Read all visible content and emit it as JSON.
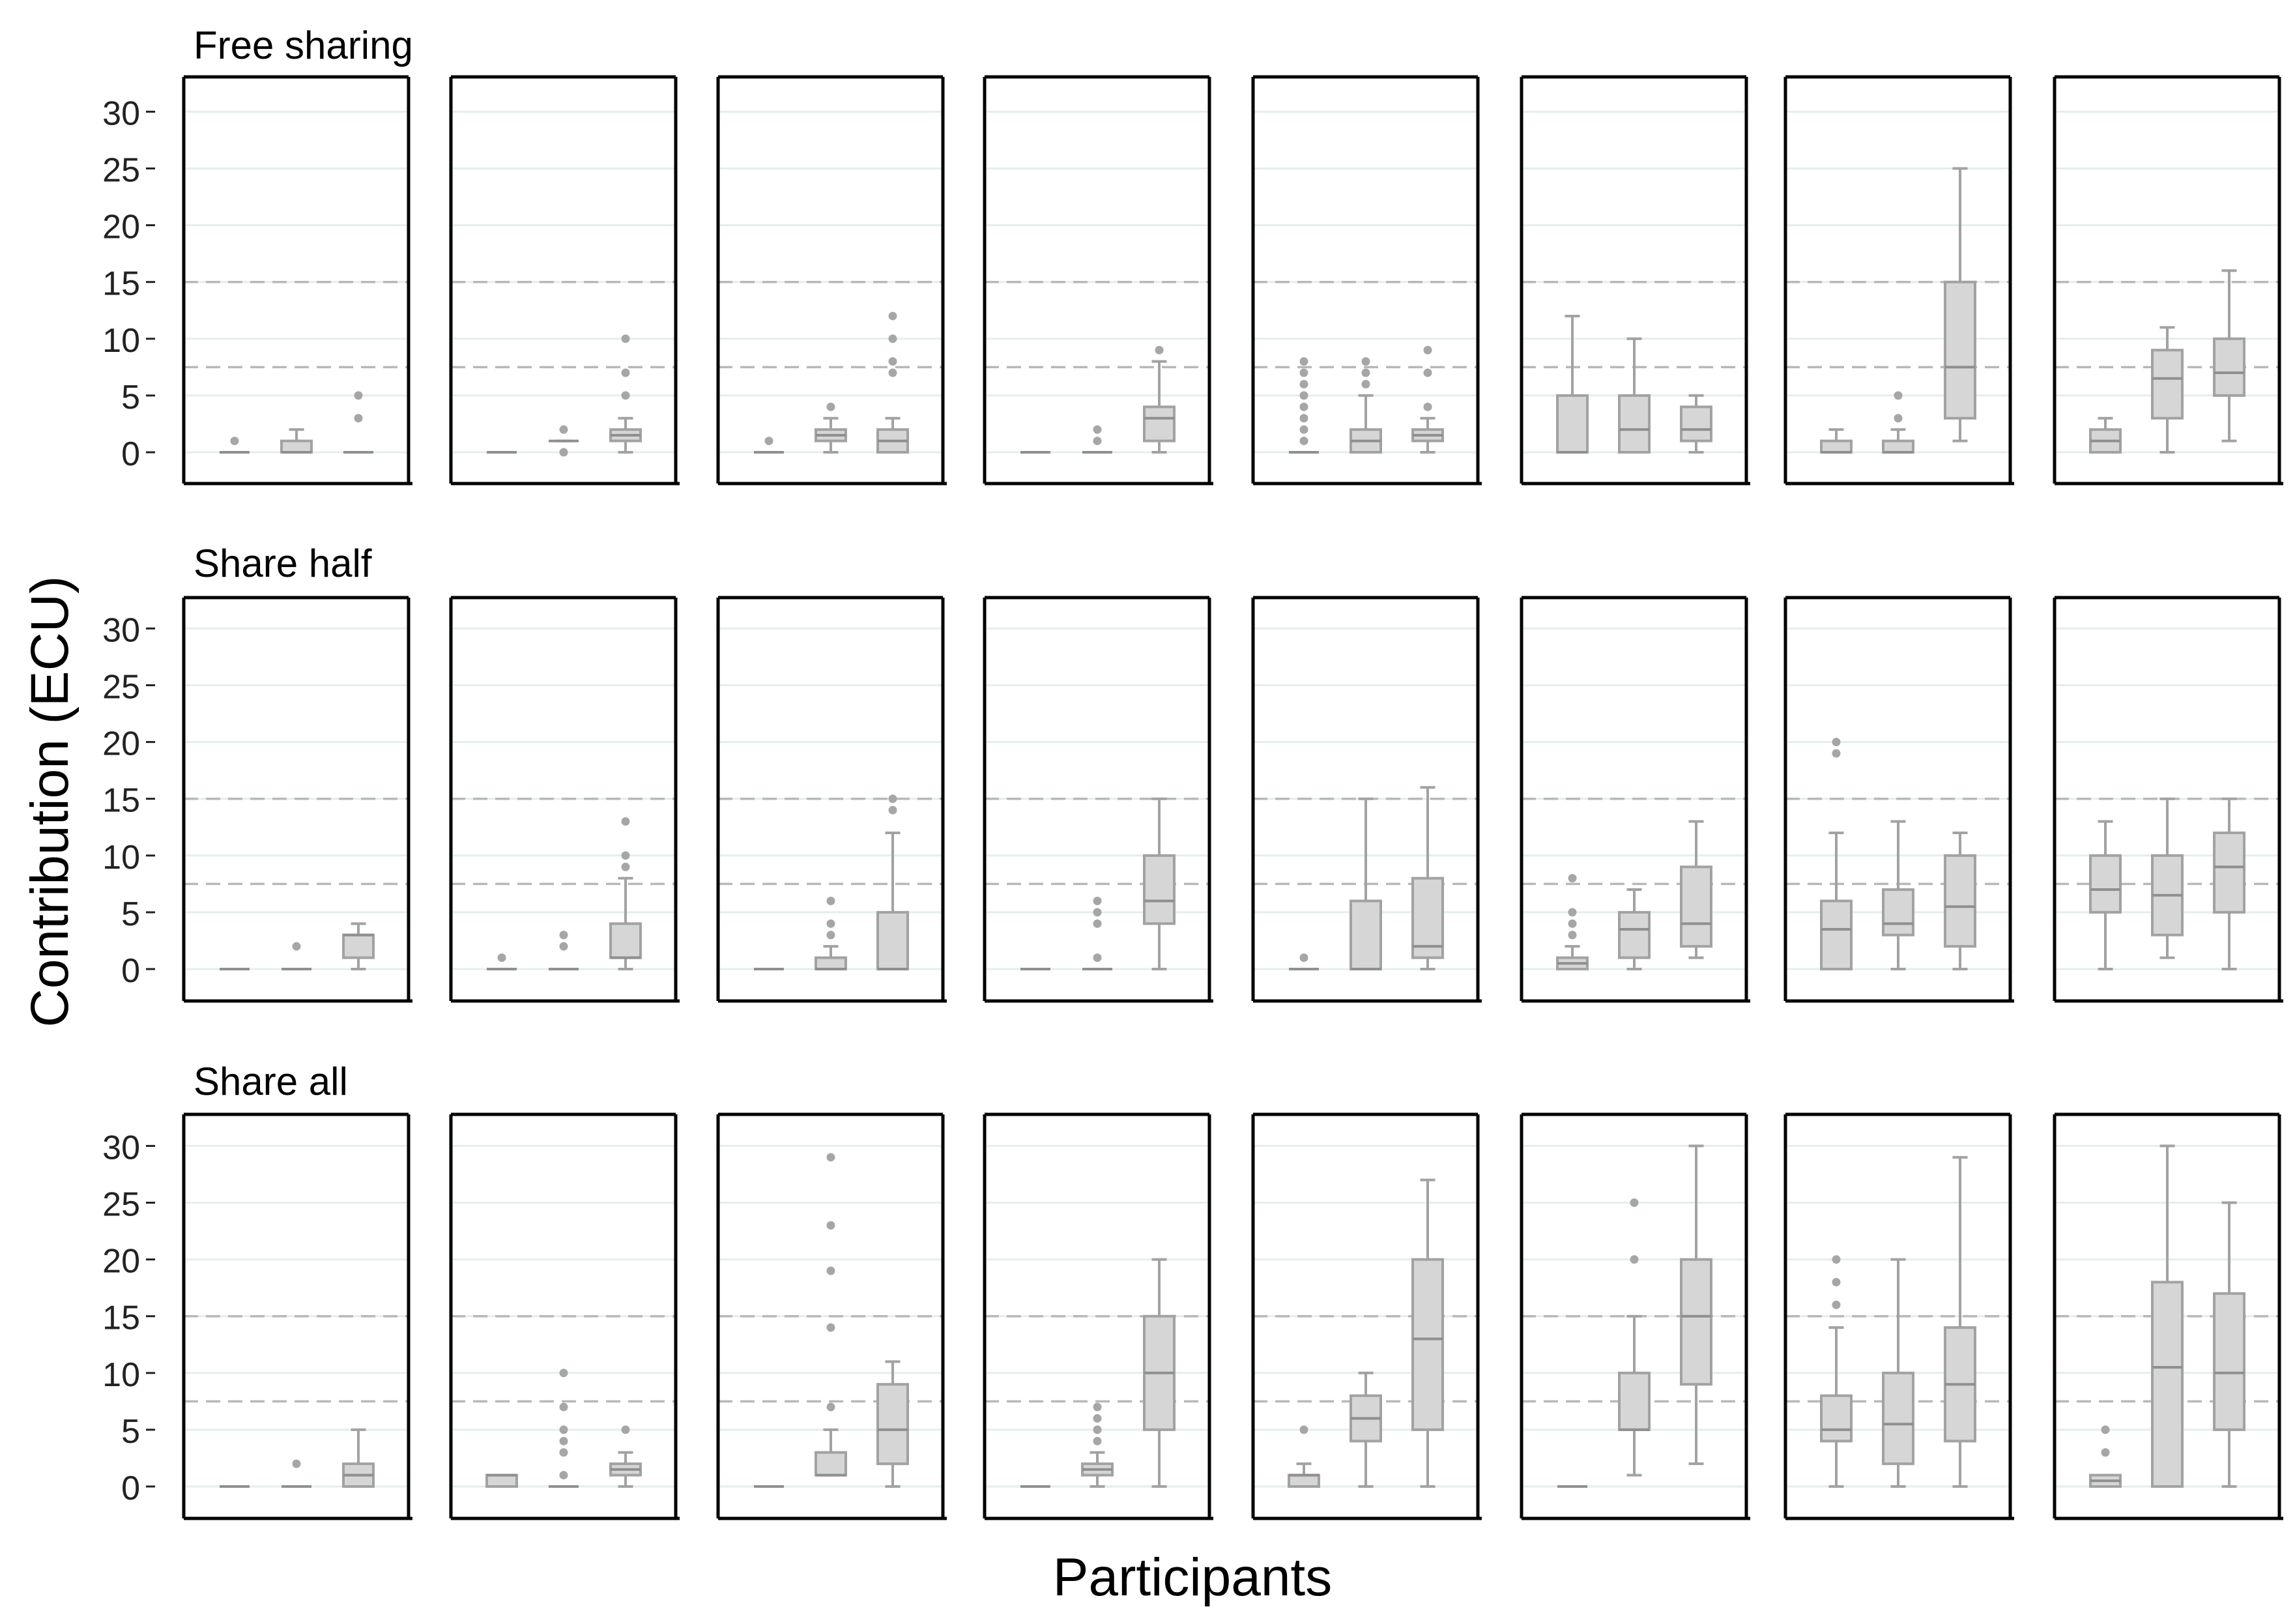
{
  "chart_data": {
    "type": "boxplot",
    "xlabel": "Participants",
    "ylabel": "Contribution (ECU)",
    "y_ticks": [
      0,
      5,
      10,
      15,
      20,
      25,
      30
    ],
    "ylim": [
      -3,
      32.5
    ],
    "reference_lines": [
      7.5,
      15
    ],
    "panels_per_row": 8,
    "boxes_per_panel": 3,
    "rows": [
      {
        "title": "Free sharing",
        "panels": [
          [
            {
              "q1": 0,
              "med": 0,
              "q3": 0,
              "lo": 0,
              "hi": 0,
              "out": [
                1
              ]
            },
            {
              "q1": 0,
              "med": 0,
              "q3": 1,
              "lo": 0,
              "hi": 2,
              "out": []
            },
            {
              "q1": 0,
              "med": 0,
              "q3": 0,
              "lo": 0,
              "hi": 0,
              "out": [
                3,
                5
              ]
            }
          ],
          [
            {
              "q1": 0,
              "med": 0,
              "q3": 0,
              "lo": 0,
              "hi": 0,
              "out": []
            },
            {
              "q1": 1,
              "med": 1,
              "q3": 1,
              "lo": 1,
              "hi": 1,
              "out": [
                0,
                2
              ]
            },
            {
              "q1": 1,
              "med": 1.5,
              "q3": 2,
              "lo": 0,
              "hi": 3,
              "out": [
                5,
                7,
                10
              ]
            }
          ],
          [
            {
              "q1": 0,
              "med": 0,
              "q3": 0,
              "lo": 0,
              "hi": 0,
              "out": [
                1
              ]
            },
            {
              "q1": 1,
              "med": 1.5,
              "q3": 2,
              "lo": 0,
              "hi": 3,
              "out": [
                4
              ]
            },
            {
              "q1": 0,
              "med": 1,
              "q3": 2,
              "lo": 0,
              "hi": 3,
              "out": [
                7,
                8,
                10,
                12
              ]
            }
          ],
          [
            {
              "q1": 0,
              "med": 0,
              "q3": 0,
              "lo": 0,
              "hi": 0,
              "out": []
            },
            {
              "q1": 0,
              "med": 0,
              "q3": 0,
              "lo": 0,
              "hi": 0,
              "out": [
                1,
                2
              ]
            },
            {
              "q1": 1,
              "med": 3,
              "q3": 4,
              "lo": 0,
              "hi": 8,
              "out": [
                9
              ]
            }
          ],
          [
            {
              "q1": 0,
              "med": 0,
              "q3": 0,
              "lo": 0,
              "hi": 0,
              "out": [
                1,
                2,
                3,
                4,
                5,
                6,
                7,
                8
              ]
            },
            {
              "q1": 0,
              "med": 1,
              "q3": 2,
              "lo": 0,
              "hi": 5,
              "out": [
                6,
                7,
                8
              ]
            },
            {
              "q1": 1,
              "med": 1.5,
              "q3": 2,
              "lo": 0,
              "hi": 3,
              "out": [
                4,
                7,
                9
              ]
            }
          ],
          [
            {
              "q1": 0,
              "med": 0,
              "q3": 5,
              "lo": 0,
              "hi": 12,
              "out": []
            },
            {
              "q1": 0,
              "med": 2,
              "q3": 5,
              "lo": 0,
              "hi": 10,
              "out": []
            },
            {
              "q1": 1,
              "med": 2,
              "q3": 4,
              "lo": 0,
              "hi": 5,
              "out": []
            }
          ],
          [
            {
              "q1": 0,
              "med": 0,
              "q3": 1,
              "lo": 0,
              "hi": 2,
              "out": []
            },
            {
              "q1": 0,
              "med": 0,
              "q3": 1,
              "lo": 0,
              "hi": 2,
              "out": [
                3,
                5
              ]
            },
            {
              "q1": 3,
              "med": 7.5,
              "q3": 15,
              "lo": 1,
              "hi": 25,
              "out": []
            }
          ],
          [
            {
              "q1": 0,
              "med": 1,
              "q3": 2,
              "lo": 0,
              "hi": 3,
              "out": []
            },
            {
              "q1": 3,
              "med": 6.5,
              "q3": 9,
              "lo": 0,
              "hi": 11,
              "out": []
            },
            {
              "q1": 5,
              "med": 7,
              "q3": 10,
              "lo": 1,
              "hi": 16,
              "out": []
            }
          ]
        ]
      },
      {
        "title": "Share half",
        "panels": [
          [
            {
              "q1": 0,
              "med": 0,
              "q3": 0,
              "lo": 0,
              "hi": 0,
              "out": []
            },
            {
              "q1": 0,
              "med": 0,
              "q3": 0,
              "lo": 0,
              "hi": 0,
              "out": [
                2
              ]
            },
            {
              "q1": 1,
              "med": 3,
              "q3": 3,
              "lo": 0,
              "hi": 4,
              "out": []
            }
          ],
          [
            {
              "q1": 0,
              "med": 0,
              "q3": 0,
              "lo": 0,
              "hi": 0,
              "out": [
                1
              ]
            },
            {
              "q1": 0,
              "med": 0,
              "q3": 0,
              "lo": 0,
              "hi": 0,
              "out": [
                2,
                3
              ]
            },
            {
              "q1": 1,
              "med": 1,
              "q3": 4,
              "lo": 0,
              "hi": 8,
              "out": [
                9,
                10,
                13
              ]
            }
          ],
          [
            {
              "q1": 0,
              "med": 0,
              "q3": 0,
              "lo": 0,
              "hi": 0,
              "out": []
            },
            {
              "q1": 0,
              "med": 0,
              "q3": 1,
              "lo": 0,
              "hi": 2,
              "out": [
                3,
                4,
                6
              ]
            },
            {
              "q1": 0,
              "med": 0,
              "q3": 5,
              "lo": 0,
              "hi": 12,
              "out": [
                14,
                15
              ]
            }
          ],
          [
            {
              "q1": 0,
              "med": 0,
              "q3": 0,
              "lo": 0,
              "hi": 0,
              "out": []
            },
            {
              "q1": 0,
              "med": 0,
              "q3": 0,
              "lo": 0,
              "hi": 0,
              "out": [
                1,
                4,
                5,
                6
              ]
            },
            {
              "q1": 4,
              "med": 6,
              "q3": 10,
              "lo": 0,
              "hi": 15,
              "out": []
            }
          ],
          [
            {
              "q1": 0,
              "med": 0,
              "q3": 0,
              "lo": 0,
              "hi": 0,
              "out": [
                1
              ]
            },
            {
              "q1": 0,
              "med": 0,
              "q3": 6,
              "lo": 0,
              "hi": 15,
              "out": []
            },
            {
              "q1": 1,
              "med": 2,
              "q3": 8,
              "lo": 0,
              "hi": 16,
              "out": []
            }
          ],
          [
            {
              "q1": 0,
              "med": 0.5,
              "q3": 1,
              "lo": 0,
              "hi": 2,
              "out": [
                3,
                4,
                5,
                8
              ]
            },
            {
              "q1": 1,
              "med": 3.5,
              "q3": 5,
              "lo": 0,
              "hi": 7,
              "out": []
            },
            {
              "q1": 2,
              "med": 4,
              "q3": 9,
              "lo": 1,
              "hi": 13,
              "out": []
            }
          ],
          [
            {
              "q1": 0,
              "med": 3.5,
              "q3": 6,
              "lo": 0,
              "hi": 12,
              "out": [
                19,
                20
              ]
            },
            {
              "q1": 3,
              "med": 4,
              "q3": 7,
              "lo": 0,
              "hi": 13,
              "out": []
            },
            {
              "q1": 2,
              "med": 5.5,
              "q3": 10,
              "lo": 0,
              "hi": 12,
              "out": []
            }
          ],
          [
            {
              "q1": 5,
              "med": 7,
              "q3": 10,
              "lo": 0,
              "hi": 13,
              "out": []
            },
            {
              "q1": 3,
              "med": 6.5,
              "q3": 10,
              "lo": 1,
              "hi": 15,
              "out": []
            },
            {
              "q1": 5,
              "med": 9,
              "q3": 12,
              "lo": 0,
              "hi": 15,
              "out": []
            }
          ]
        ]
      },
      {
        "title": "Share all",
        "panels": [
          [
            {
              "q1": 0,
              "med": 0,
              "q3": 0,
              "lo": 0,
              "hi": 0,
              "out": []
            },
            {
              "q1": 0,
              "med": 0,
              "q3": 0,
              "lo": 0,
              "hi": 0,
              "out": [
                2
              ]
            },
            {
              "q1": 0,
              "med": 1,
              "q3": 2,
              "lo": 0,
              "hi": 5,
              "out": []
            }
          ],
          [
            {
              "q1": 0,
              "med": 1,
              "q3": 1,
              "lo": 0,
              "hi": 1,
              "out": []
            },
            {
              "q1": 0,
              "med": 0,
              "q3": 0,
              "lo": 0,
              "hi": 0,
              "out": [
                1,
                3,
                4,
                5,
                7,
                10
              ]
            },
            {
              "q1": 1,
              "med": 1.5,
              "q3": 2,
              "lo": 0,
              "hi": 3,
              "out": [
                5
              ]
            }
          ],
          [
            {
              "q1": 0,
              "med": 0,
              "q3": 0,
              "lo": 0,
              "hi": 0,
              "out": []
            },
            {
              "q1": 1,
              "med": 1,
              "q3": 3,
              "lo": 1,
              "hi": 5,
              "out": [
                7,
                14,
                19,
                23,
                29
              ]
            },
            {
              "q1": 2,
              "med": 5,
              "q3": 9,
              "lo": 0,
              "hi": 11,
              "out": []
            }
          ],
          [
            {
              "q1": 0,
              "med": 0,
              "q3": 0,
              "lo": 0,
              "hi": 0,
              "out": []
            },
            {
              "q1": 1,
              "med": 1.5,
              "q3": 2,
              "lo": 0,
              "hi": 3,
              "out": [
                4,
                5,
                6,
                7
              ]
            },
            {
              "q1": 5,
              "med": 10,
              "q3": 15,
              "lo": 0,
              "hi": 20,
              "out": []
            }
          ],
          [
            {
              "q1": 0,
              "med": 1,
              "q3": 1,
              "lo": 0,
              "hi": 2,
              "out": [
                5
              ]
            },
            {
              "q1": 4,
              "med": 6,
              "q3": 8,
              "lo": 0,
              "hi": 10,
              "out": []
            },
            {
              "q1": 5,
              "med": 13,
              "q3": 20,
              "lo": 0,
              "hi": 27,
              "out": []
            }
          ],
          [
            {
              "q1": 0,
              "med": 0,
              "q3": 0,
              "lo": 0,
              "hi": 0,
              "out": []
            },
            {
              "q1": 5,
              "med": 5,
              "q3": 10,
              "lo": 1,
              "hi": 15,
              "out": [
                20,
                25
              ]
            },
            {
              "q1": 9,
              "med": 15,
              "q3": 20,
              "lo": 2,
              "hi": 30,
              "out": []
            }
          ],
          [
            {
              "q1": 4,
              "med": 5,
              "q3": 8,
              "lo": 0,
              "hi": 14,
              "out": [
                16,
                18,
                20
              ]
            },
            {
              "q1": 2,
              "med": 5.5,
              "q3": 10,
              "lo": 0,
              "hi": 20,
              "out": []
            },
            {
              "q1": 4,
              "med": 9,
              "q3": 14,
              "lo": 0,
              "hi": 29,
              "out": []
            }
          ],
          [
            {
              "q1": 0,
              "med": 0.5,
              "q3": 1,
              "lo": 0,
              "hi": 1,
              "out": [
                3,
                5
              ]
            },
            {
              "q1": 0,
              "med": 10.5,
              "q3": 18,
              "lo": 0,
              "hi": 30,
              "out": []
            },
            {
              "q1": 5,
              "med": 10,
              "q3": 17,
              "lo": 0,
              "hi": 25,
              "out": []
            }
          ]
        ]
      }
    ]
  }
}
